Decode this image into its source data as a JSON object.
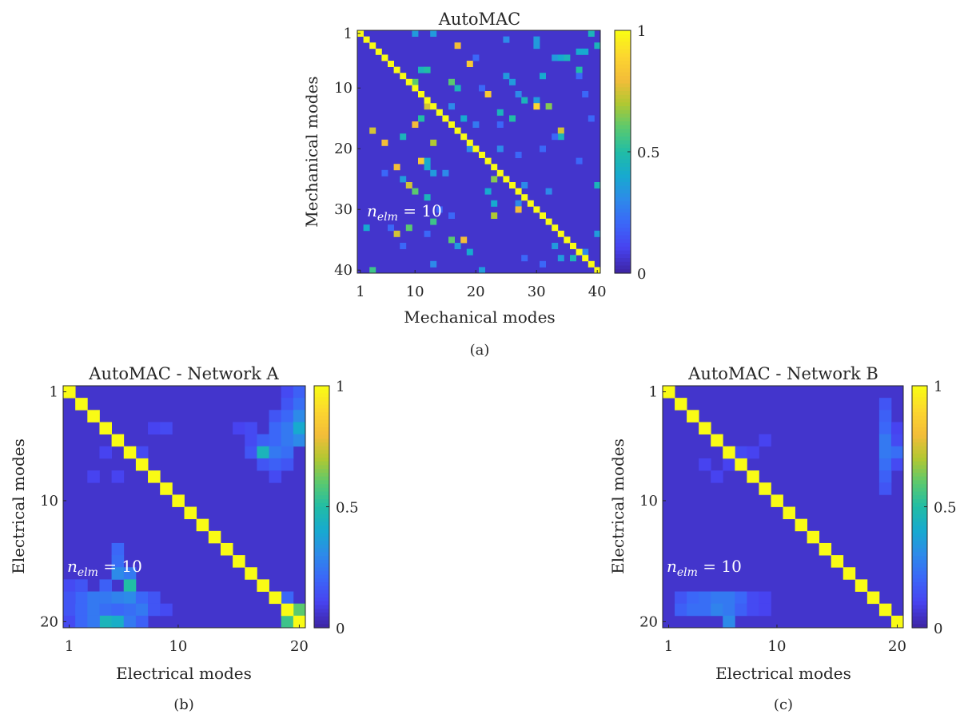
{
  "colormap": [
    "#3e26a8",
    "#4743f0",
    "#3b67f8",
    "#2d8ae9",
    "#17aacf",
    "#21bda5",
    "#5ac96f",
    "#b0c832",
    "#f3bd39",
    "#fcd62f",
    "#f9fb15"
  ],
  "chart_data": [
    {
      "type": "heatmap",
      "title": "AutoMAC",
      "xlabel": "Mechanical modes",
      "ylabel": "Mechanical modes",
      "caption": "(a)",
      "annotation": {
        "n": "n",
        "sub": "elm",
        "rest": " = 10"
      },
      "n": 40,
      "xticks": [
        1,
        10,
        20,
        30,
        40
      ],
      "yticks": [
        1,
        10,
        20,
        30,
        40
      ],
      "colorbar_ticks": [
        0,
        0.5,
        1
      ],
      "colorbar_labels": [
        "0",
        "0.5",
        "1"
      ],
      "clim": [
        0,
        1
      ],
      "background_value": 0.05,
      "diagonal_value": 1,
      "cells": [
        [
          1,
          39,
          0.45
        ],
        [
          3,
          17,
          0.8
        ],
        [
          3,
          40,
          0.45
        ],
        [
          4,
          37,
          0.4
        ],
        [
          4,
          38,
          0.4
        ],
        [
          5,
          33,
          0.35
        ],
        [
          5,
          34,
          0.4
        ],
        [
          5,
          35,
          0.45
        ],
        [
          6,
          19,
          0.85
        ],
        [
          7,
          11,
          0.45
        ],
        [
          7,
          12,
          0.5
        ],
        [
          7,
          37,
          0.5
        ],
        [
          8,
          25,
          0.35
        ],
        [
          8,
          31,
          0.4
        ],
        [
          9,
          10,
          0.6
        ],
        [
          9,
          16,
          0.6
        ],
        [
          9,
          26,
          0.35
        ],
        [
          10,
          17,
          0.45
        ],
        [
          10,
          21,
          0.2
        ],
        [
          11,
          22,
          0.85
        ],
        [
          11,
          27,
          0.3
        ],
        [
          12,
          28,
          0.45
        ],
        [
          12,
          30,
          0.35
        ],
        [
          13,
          12,
          0.75
        ],
        [
          13,
          16,
          0.3
        ],
        [
          13,
          30,
          0.9
        ],
        [
          13,
          32,
          0.65
        ],
        [
          14,
          14,
          0.3
        ],
        [
          14,
          24,
          0.45
        ],
        [
          15,
          11,
          0.5
        ],
        [
          15,
          18,
          0.4
        ],
        [
          15,
          26,
          0.5
        ],
        [
          16,
          10,
          0.8
        ],
        [
          16,
          20,
          0.25
        ],
        [
          16,
          24,
          0.2
        ],
        [
          17,
          3,
          0.75
        ],
        [
          17,
          34,
          0.75
        ],
        [
          18,
          34,
          0.45
        ],
        [
          18,
          8,
          0.45
        ],
        [
          19,
          5,
          0.8
        ],
        [
          19,
          13,
          0.7
        ],
        [
          20,
          24,
          0.3
        ],
        [
          20,
          19,
          0.3
        ],
        [
          21,
          21,
          0.3
        ],
        [
          22,
          11,
          0.85
        ],
        [
          22,
          12,
          0.4
        ],
        [
          23,
          7,
          0.8
        ],
        [
          23,
          12,
          0.4
        ],
        [
          24,
          13,
          0.35
        ],
        [
          24,
          15,
          0.3
        ],
        [
          25,
          23,
          0.65
        ],
        [
          25,
          8,
          0.35
        ],
        [
          26,
          9,
          0.75
        ],
        [
          26,
          28,
          0.3
        ],
        [
          26,
          40,
          0.45
        ],
        [
          27,
          10,
          0.6
        ],
        [
          27,
          22,
          0.4
        ],
        [
          28,
          12,
          0.45
        ],
        [
          29,
          23,
          0.4
        ],
        [
          29,
          27,
          0.3
        ],
        [
          30,
          27,
          0.8
        ],
        [
          31,
          23,
          0.7
        ],
        [
          32,
          13,
          0.55
        ],
        [
          33,
          9,
          0.6
        ],
        [
          33,
          2,
          0.4
        ],
        [
          34,
          7,
          0.75
        ],
        [
          34,
          40,
          0.35
        ],
        [
          35,
          16,
          0.6
        ],
        [
          35,
          18,
          0.8
        ],
        [
          35,
          35,
          0.85
        ],
        [
          36,
          17,
          0.35
        ],
        [
          36,
          33,
          0.35
        ],
        [
          37,
          19,
          0.4
        ],
        [
          37,
          38,
          0.3
        ],
        [
          38,
          36,
          0.45
        ],
        [
          38,
          34,
          0.35
        ],
        [
          39,
          13,
          0.3
        ],
        [
          40,
          21,
          0.35
        ],
        [
          40,
          3,
          0.55
        ],
        [
          1,
          10,
          0.35
        ],
        [
          1,
          13,
          0.35
        ],
        [
          2,
          25,
          0.3
        ],
        [
          2,
          30,
          0.35
        ],
        [
          3,
          30,
          0.35
        ],
        [
          5,
          20,
          0.2
        ],
        [
          18,
          33,
          0.2
        ],
        [
          21,
          27,
          0.2
        ],
        [
          27,
          32,
          0.3
        ],
        [
          30,
          14,
          0.2
        ],
        [
          31,
          16,
          0.2
        ],
        [
          33,
          6,
          0.2
        ],
        [
          34,
          12,
          0.2
        ],
        [
          36,
          8,
          0.2
        ],
        [
          38,
          28,
          0.2
        ],
        [
          39,
          31,
          0.2
        ],
        [
          24,
          5,
          0.2
        ],
        [
          22,
          37,
          0.2
        ],
        [
          20,
          31,
          0.2
        ],
        [
          15,
          39,
          0.2
        ],
        [
          11,
          38,
          0.2
        ],
        [
          8,
          37,
          0.2
        ]
      ]
    },
    {
      "type": "heatmap",
      "title": "AutoMAC - Network A",
      "xlabel": "Electrical modes",
      "ylabel": "Electrical modes",
      "caption": "(b)",
      "annotation": {
        "n": "n",
        "sub": "elm",
        "rest": " = 10"
      },
      "n": 20,
      "xticks": [
        1,
        10,
        20
      ],
      "yticks": [
        1,
        10,
        20
      ],
      "colorbar_ticks": [
        0,
        0.5,
        1
      ],
      "colorbar_labels": [
        "0",
        "0.5",
        "1"
      ],
      "clim": [
        0,
        1
      ],
      "background_value": 0.05,
      "diagonal_value": 1,
      "cells": [
        [
          1,
          19,
          0.12
        ],
        [
          1,
          20,
          0.18
        ],
        [
          2,
          19,
          0.15
        ],
        [
          2,
          20,
          0.22
        ],
        [
          3,
          18,
          0.15
        ],
        [
          3,
          19,
          0.2
        ],
        [
          3,
          20,
          0.3
        ],
        [
          4,
          8,
          0.1
        ],
        [
          4,
          9,
          0.12
        ],
        [
          4,
          15,
          0.1
        ],
        [
          4,
          16,
          0.12
        ],
        [
          4,
          18,
          0.2
        ],
        [
          4,
          19,
          0.25
        ],
        [
          4,
          20,
          0.4
        ],
        [
          5,
          16,
          0.12
        ],
        [
          5,
          17,
          0.18
        ],
        [
          5,
          18,
          0.2
        ],
        [
          5,
          19,
          0.25
        ],
        [
          5,
          20,
          0.3
        ],
        [
          6,
          4,
          0.1
        ],
        [
          6,
          7,
          0.12
        ],
        [
          6,
          16,
          0.15
        ],
        [
          6,
          17,
          0.45
        ],
        [
          6,
          18,
          0.25
        ],
        [
          6,
          19,
          0.22
        ],
        [
          7,
          7,
          0.12
        ],
        [
          7,
          17,
          0.15
        ],
        [
          7,
          18,
          0.18
        ],
        [
          7,
          19,
          0.15
        ],
        [
          8,
          3,
          0.1
        ],
        [
          8,
          5,
          0.1
        ],
        [
          8,
          18,
          0.12
        ],
        [
          14,
          5,
          0.2
        ],
        [
          15,
          5,
          0.22
        ],
        [
          16,
          5,
          0.3
        ],
        [
          16,
          6,
          0.25
        ],
        [
          17,
          4,
          0.18
        ],
        [
          17,
          6,
          0.5
        ],
        [
          18,
          2,
          0.2
        ],
        [
          18,
          3,
          0.25
        ],
        [
          18,
          4,
          0.25
        ],
        [
          18,
          5,
          0.28
        ],
        [
          18,
          6,
          0.3
        ],
        [
          18,
          7,
          0.2
        ],
        [
          18,
          8,
          0.15
        ],
        [
          19,
          1,
          0.15
        ],
        [
          19,
          2,
          0.2
        ],
        [
          19,
          3,
          0.25
        ],
        [
          19,
          4,
          0.22
        ],
        [
          19,
          5,
          0.2
        ],
        [
          19,
          6,
          0.22
        ],
        [
          19,
          7,
          0.25
        ],
        [
          19,
          8,
          0.15
        ],
        [
          19,
          9,
          0.12
        ],
        [
          19,
          20,
          0.6
        ],
        [
          20,
          1,
          0.12
        ],
        [
          20,
          2,
          0.2
        ],
        [
          20,
          4,
          0.45
        ],
        [
          20,
          5,
          0.42
        ],
        [
          20,
          6,
          0.25
        ],
        [
          20,
          7,
          0.18
        ],
        [
          20,
          19,
          0.55
        ],
        [
          17,
          1,
          0.12
        ],
        [
          17,
          2,
          0.15
        ],
        [
          18,
          1,
          0.15
        ],
        [
          18,
          19,
          0.2
        ],
        [
          20,
          3,
          0.25
        ]
      ]
    },
    {
      "type": "heatmap",
      "title": "AutoMAC - Network B",
      "xlabel": "Electrical modes",
      "ylabel": "Electrical modes",
      "caption": "(c)",
      "annotation": {
        "n": "n",
        "sub": "elm",
        "rest": " = 10"
      },
      "n": 20,
      "xticks": [
        1,
        10,
        20
      ],
      "yticks": [
        1,
        10,
        20
      ],
      "colorbar_ticks": [
        0,
        0.5,
        1
      ],
      "colorbar_labels": [
        "0",
        "0.5",
        "1"
      ],
      "clim": [
        0,
        1
      ],
      "background_value": 0.05,
      "diagonal_value": 1,
      "cells": [
        [
          2,
          19,
          0.15
        ],
        [
          3,
          19,
          0.18
        ],
        [
          4,
          19,
          0.2
        ],
        [
          4,
          20,
          0.1
        ],
        [
          5,
          19,
          0.25
        ],
        [
          5,
          20,
          0.12
        ],
        [
          6,
          19,
          0.25
        ],
        [
          6,
          20,
          0.22
        ],
        [
          7,
          19,
          0.22
        ],
        [
          7,
          20,
          0.12
        ],
        [
          8,
          19,
          0.18
        ],
        [
          9,
          19,
          0.15
        ],
        [
          5,
          9,
          0.1
        ],
        [
          6,
          7,
          0.12
        ],
        [
          6,
          8,
          0.1
        ],
        [
          7,
          4,
          0.1
        ],
        [
          7,
          6,
          0.1
        ],
        [
          8,
          5,
          0.1
        ],
        [
          18,
          2,
          0.15
        ],
        [
          18,
          3,
          0.2
        ],
        [
          18,
          4,
          0.22
        ],
        [
          18,
          5,
          0.25
        ],
        [
          18,
          6,
          0.25
        ],
        [
          18,
          7,
          0.2
        ],
        [
          18,
          8,
          0.12
        ],
        [
          18,
          9,
          0.1
        ],
        [
          19,
          2,
          0.18
        ],
        [
          19,
          3,
          0.22
        ],
        [
          19,
          4,
          0.22
        ],
        [
          19,
          5,
          0.28
        ],
        [
          19,
          6,
          0.25
        ],
        [
          19,
          7,
          0.18
        ],
        [
          19,
          8,
          0.12
        ],
        [
          19,
          9,
          0.1
        ],
        [
          20,
          6,
          0.3
        ]
      ]
    }
  ]
}
